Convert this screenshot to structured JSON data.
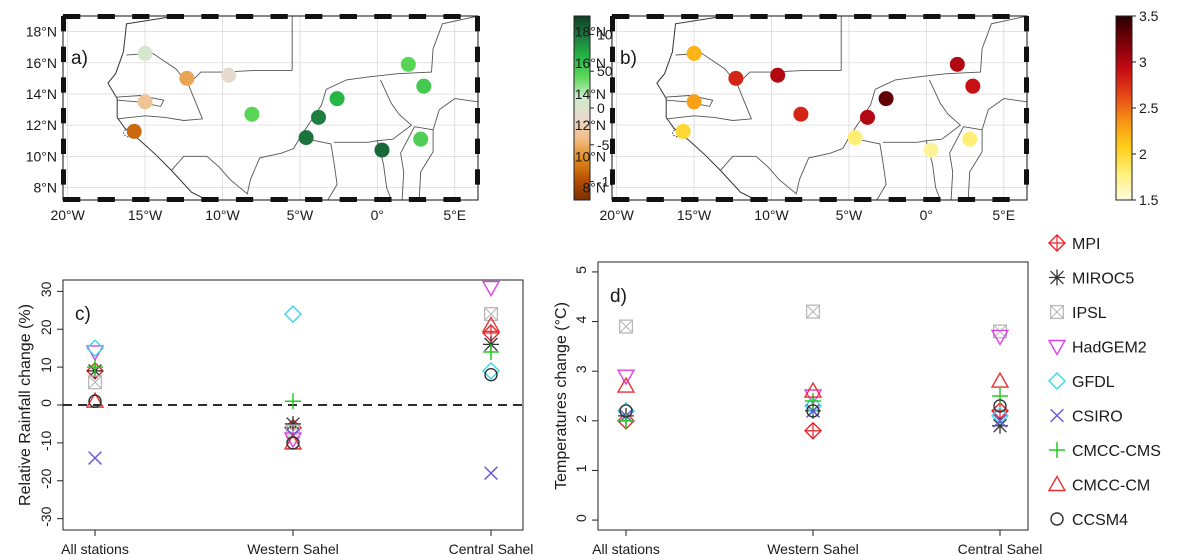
{
  "colors": {
    "rain_scale": [
      "#7a2e00",
      "#b84f00",
      "#e08a1e",
      "#f2bd86",
      "#e9d9cc",
      "#cdeccd",
      "#5fd85a",
      "#25b845",
      "#1b7a3e",
      "#123f26"
    ],
    "temp_scale": [
      "#fffbe0",
      "#fff07a",
      "#ffcf1a",
      "#f79415",
      "#e44616",
      "#c40a14",
      "#7a0008",
      "#2a0000"
    ],
    "models": {
      "MPI": "#e8252a",
      "MIROC5": "#333333",
      "IPSL": "#b8b8b8",
      "HadGEM2": "#e040e8",
      "GFDL": "#38d8e8",
      "CSIRO": "#6a5ce0",
      "CMCC-CMS": "#22cc22",
      "CMCC-CM": "#e83030",
      "CCSM4": "#303030"
    }
  },
  "maps": [
    {
      "panel": "a)",
      "x_ticks": [
        "20°W",
        "15°W",
        "10°W",
        "5°W",
        "0°",
        "5°E"
      ],
      "x_values": [
        -20,
        -15,
        -10,
        -5,
        0,
        5
      ],
      "y_ticks": [
        "8°N",
        "10°N",
        "12°N",
        "14°N",
        "16°N",
        "18°N"
      ],
      "y_values": [
        8,
        10,
        12,
        14,
        16,
        18
      ],
      "xlim": [
        -20.3,
        6.5
      ],
      "ylim": [
        7.2,
        19.0
      ],
      "colorbar": {
        "ticks": [
          "100",
          "50",
          "0",
          "-50",
          "-100"
        ],
        "values": [
          100,
          50,
          0,
          -50,
          -100
        ],
        "range": [
          -125,
          125
        ]
      },
      "stations": [
        {
          "lon": -15.0,
          "lat": 16.6,
          "value": 5
        },
        {
          "lon": -12.3,
          "lat": 15.0,
          "value": -55
        },
        {
          "lon": -9.6,
          "lat": 15.2,
          "value": -12
        },
        {
          "lon": -15.0,
          "lat": 13.5,
          "value": -35
        },
        {
          "lon": -8.1,
          "lat": 12.7,
          "value": 45
        },
        {
          "lon": -15.7,
          "lat": 11.6,
          "value": -85
        },
        {
          "lon": -4.6,
          "lat": 11.2,
          "value": 100
        },
        {
          "lon": -3.8,
          "lat": 12.5,
          "value": 95
        },
        {
          "lon": -2.6,
          "lat": 13.7,
          "value": 70
        },
        {
          "lon": 0.3,
          "lat": 10.4,
          "value": 105
        },
        {
          "lon": 2.0,
          "lat": 15.9,
          "value": 45
        },
        {
          "lon": 3.0,
          "lat": 14.5,
          "value": 55
        },
        {
          "lon": 2.8,
          "lat": 11.1,
          "value": 50
        }
      ]
    },
    {
      "panel": "b)",
      "x_ticks": [
        "20°W",
        "15°W",
        "10°W",
        "5°W",
        "0°",
        "5°E"
      ],
      "x_values": [
        -20,
        -15,
        -10,
        -5,
        0,
        5
      ],
      "y_ticks": [
        "8°N",
        "10°N",
        "12°N",
        "14°N",
        "16°N",
        "18°N"
      ],
      "y_values": [
        8,
        10,
        12,
        14,
        16,
        18
      ],
      "xlim": [
        -20.3,
        6.5
      ],
      "ylim": [
        7.2,
        19.0
      ],
      "colorbar": {
        "ticks": [
          "3.5",
          "3",
          "2.5",
          "2",
          "1.5"
        ],
        "values": [
          3.5,
          3,
          2.5,
          2,
          1.5
        ],
        "range": [
          1.5,
          3.5
        ]
      },
      "stations": [
        {
          "lon": -15.0,
          "lat": 16.6,
          "value": 2.2
        },
        {
          "lon": -12.3,
          "lat": 15.0,
          "value": 2.8
        },
        {
          "lon": -9.6,
          "lat": 15.2,
          "value": 3.0
        },
        {
          "lon": -15.0,
          "lat": 13.5,
          "value": 2.3
        },
        {
          "lon": -8.1,
          "lat": 12.7,
          "value": 2.8
        },
        {
          "lon": -15.7,
          "lat": 11.6,
          "value": 2.0
        },
        {
          "lon": -4.6,
          "lat": 11.2,
          "value": 1.8
        },
        {
          "lon": -3.8,
          "lat": 12.5,
          "value": 3.0
        },
        {
          "lon": -2.6,
          "lat": 13.7,
          "value": 3.3
        },
        {
          "lon": 0.3,
          "lat": 10.4,
          "value": 1.7
        },
        {
          "lon": 2.0,
          "lat": 15.9,
          "value": 3.0
        },
        {
          "lon": 3.0,
          "lat": 14.5,
          "value": 2.9
        },
        {
          "lon": 2.8,
          "lat": 11.1,
          "value": 1.8
        }
      ]
    }
  ],
  "chart_data": [
    {
      "type": "scatter",
      "panel": "c)",
      "categories": [
        "All stations",
        "Western Sahel",
        "Central Sahel"
      ],
      "ylabel": "Relative Rainfall change (%)",
      "ylim": [
        -33,
        33
      ],
      "yticks": [
        -30,
        -20,
        -10,
        0,
        10,
        20,
        30
      ],
      "zero_line": true,
      "grid": false,
      "series": [
        {
          "name": "MPI",
          "values": [
            9,
            -6,
            19
          ]
        },
        {
          "name": "MIROC5",
          "values": [
            9,
            -5,
            16
          ]
        },
        {
          "name": "IPSL",
          "values": [
            6,
            -7,
            24
          ]
        },
        {
          "name": "HadGEM2",
          "values": [
            14,
            -9,
            31
          ]
        },
        {
          "name": "GFDL",
          "values": [
            15,
            24,
            9
          ]
        },
        {
          "name": "CSIRO",
          "values": [
            -14,
            -8,
            -18
          ]
        },
        {
          "name": "CMCC-CMS",
          "values": [
            10,
            1,
            14
          ]
        },
        {
          "name": "CMCC-CM",
          "values": [
            1,
            -10,
            21
          ]
        },
        {
          "name": "CCSM4",
          "values": [
            1,
            -10,
            8
          ]
        }
      ]
    },
    {
      "type": "scatter",
      "panel": "d)",
      "categories": [
        "All stations",
        "Western Sahel",
        "Central Sahel"
      ],
      "ylabel": "Temperatures change (°C)",
      "ylim": [
        -0.2,
        5.2
      ],
      "yticks": [
        0,
        1,
        2,
        3,
        4,
        5
      ],
      "grid": false,
      "series": [
        {
          "name": "MPI",
          "values": [
            2.0,
            1.8,
            2.2
          ]
        },
        {
          "name": "MIROC5",
          "values": [
            2.1,
            2.2,
            1.9
          ]
        },
        {
          "name": "IPSL",
          "values": [
            3.9,
            4.2,
            3.8
          ]
        },
        {
          "name": "HadGEM2",
          "values": [
            2.9,
            2.5,
            3.7
          ]
        },
        {
          "name": "GFDL",
          "values": [
            2.2,
            2.3,
            2.1
          ]
        },
        {
          "name": "CSIRO",
          "values": [
            2.1,
            2.2,
            2.0
          ]
        },
        {
          "name": "CMCC-CMS",
          "values": [
            2.0,
            2.4,
            2.5
          ]
        },
        {
          "name": "CMCC-CM",
          "values": [
            2.7,
            2.6,
            2.8
          ]
        },
        {
          "name": "CCSM4",
          "values": [
            2.2,
            2.2,
            2.3
          ]
        }
      ]
    }
  ],
  "legend": {
    "placement": "right",
    "entries": [
      "MPI",
      "MIROC5",
      "IPSL",
      "HadGEM2",
      "GFDL",
      "CSIRO",
      "CMCC-CMS",
      "CMCC-CM",
      "CCSM4"
    ],
    "markers": [
      "diamond-plus",
      "asterisk",
      "square-x",
      "triangle-down",
      "diamond",
      "x",
      "plus",
      "triangle-up",
      "circle"
    ]
  }
}
